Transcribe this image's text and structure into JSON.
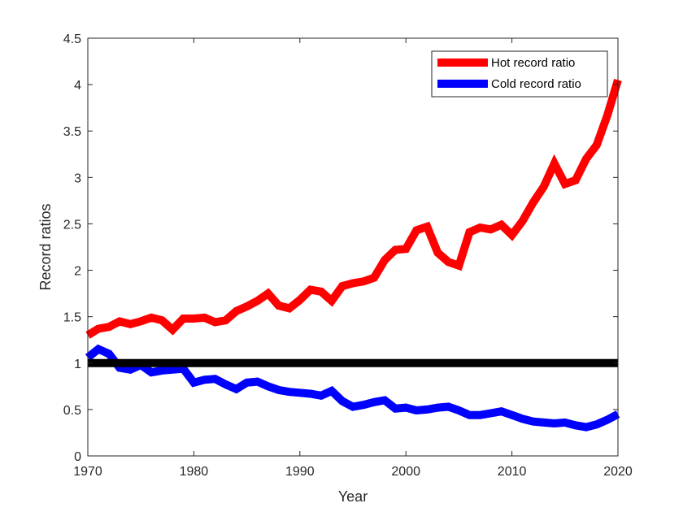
{
  "chart_data": {
    "type": "line",
    "xlabel": "Year",
    "ylabel": "Record ratios",
    "xlim": [
      1970,
      2020
    ],
    "ylim": [
      0,
      4.5
    ],
    "xticks": [
      1970,
      1980,
      1990,
      2000,
      2010,
      2020
    ],
    "xtick_labels": [
      "1970",
      "1980",
      "1990",
      "2000",
      "2010",
      "2020"
    ],
    "yticks": [
      0,
      0.5,
      1,
      1.5,
      2,
      2.5,
      3,
      3.5,
      4,
      4.5
    ],
    "ytick_labels": [
      "0",
      "0.5",
      "1",
      "1.5",
      "2",
      "2.5",
      "3",
      "3.5",
      "4",
      "4.5"
    ],
    "grid": false,
    "legend_position": "top-right",
    "x": [
      1970,
      1971,
      1972,
      1973,
      1974,
      1975,
      1976,
      1977,
      1978,
      1979,
      1980,
      1981,
      1982,
      1983,
      1984,
      1985,
      1986,
      1987,
      1988,
      1989,
      1990,
      1991,
      1992,
      1993,
      1994,
      1995,
      1996,
      1997,
      1998,
      1999,
      2000,
      2001,
      2002,
      2003,
      2004,
      2005,
      2006,
      2007,
      2008,
      2009,
      2010,
      2011,
      2012,
      2013,
      2014,
      2015,
      2016,
      2017,
      2018,
      2019,
      2020
    ],
    "series": [
      {
        "name": "Hot record ratio",
        "color": "#ff0000",
        "values": [
          1.3,
          1.37,
          1.39,
          1.45,
          1.42,
          1.45,
          1.49,
          1.46,
          1.36,
          1.48,
          1.48,
          1.49,
          1.44,
          1.46,
          1.56,
          1.61,
          1.67,
          1.75,
          1.62,
          1.59,
          1.68,
          1.79,
          1.77,
          1.67,
          1.83,
          1.86,
          1.88,
          1.92,
          2.11,
          2.22,
          2.23,
          2.43,
          2.47,
          2.19,
          2.09,
          2.05,
          2.41,
          2.46,
          2.44,
          2.49,
          2.38,
          2.53,
          2.73,
          2.9,
          3.15,
          2.93,
          2.97,
          3.2,
          3.35,
          3.67,
          4.05
        ],
        "in_legend": true
      },
      {
        "name": "Cold record ratio",
        "color": "#0000ff",
        "values": [
          1.06,
          1.15,
          1.1,
          0.95,
          0.93,
          0.98,
          0.9,
          0.92,
          0.93,
          0.94,
          0.79,
          0.82,
          0.83,
          0.77,
          0.72,
          0.79,
          0.8,
          0.75,
          0.71,
          0.69,
          0.68,
          0.67,
          0.65,
          0.7,
          0.59,
          0.53,
          0.55,
          0.58,
          0.6,
          0.51,
          0.52,
          0.49,
          0.5,
          0.52,
          0.53,
          0.49,
          0.44,
          0.44,
          0.46,
          0.48,
          0.44,
          0.4,
          0.37,
          0.36,
          0.35,
          0.36,
          0.33,
          0.31,
          0.34,
          0.39,
          0.45
        ],
        "in_legend": true
      },
      {
        "name": "Reference line",
        "color": "#000000",
        "values": [
          1,
          1
        ],
        "x": [
          1970,
          2020
        ],
        "in_legend": false
      }
    ]
  }
}
